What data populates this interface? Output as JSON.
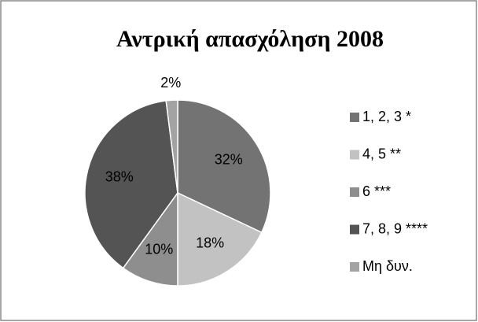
{
  "chart_data": {
    "type": "pie",
    "title": "Αντρική απασχόληση 2008",
    "categories": [
      "1, 2, 3 *",
      "4, 5 **",
      "6 ***",
      "7, 8, 9 ****",
      "Μη δυν."
    ],
    "values": [
      32,
      18,
      10,
      38,
      2
    ],
    "value_labels": [
      "32%",
      "18%",
      "10%",
      "38%",
      "2%"
    ],
    "colors": [
      "#737373",
      "#c2c2c2",
      "#8e8e8e",
      "#545454",
      "#a3a3a3"
    ],
    "legend": "right"
  }
}
